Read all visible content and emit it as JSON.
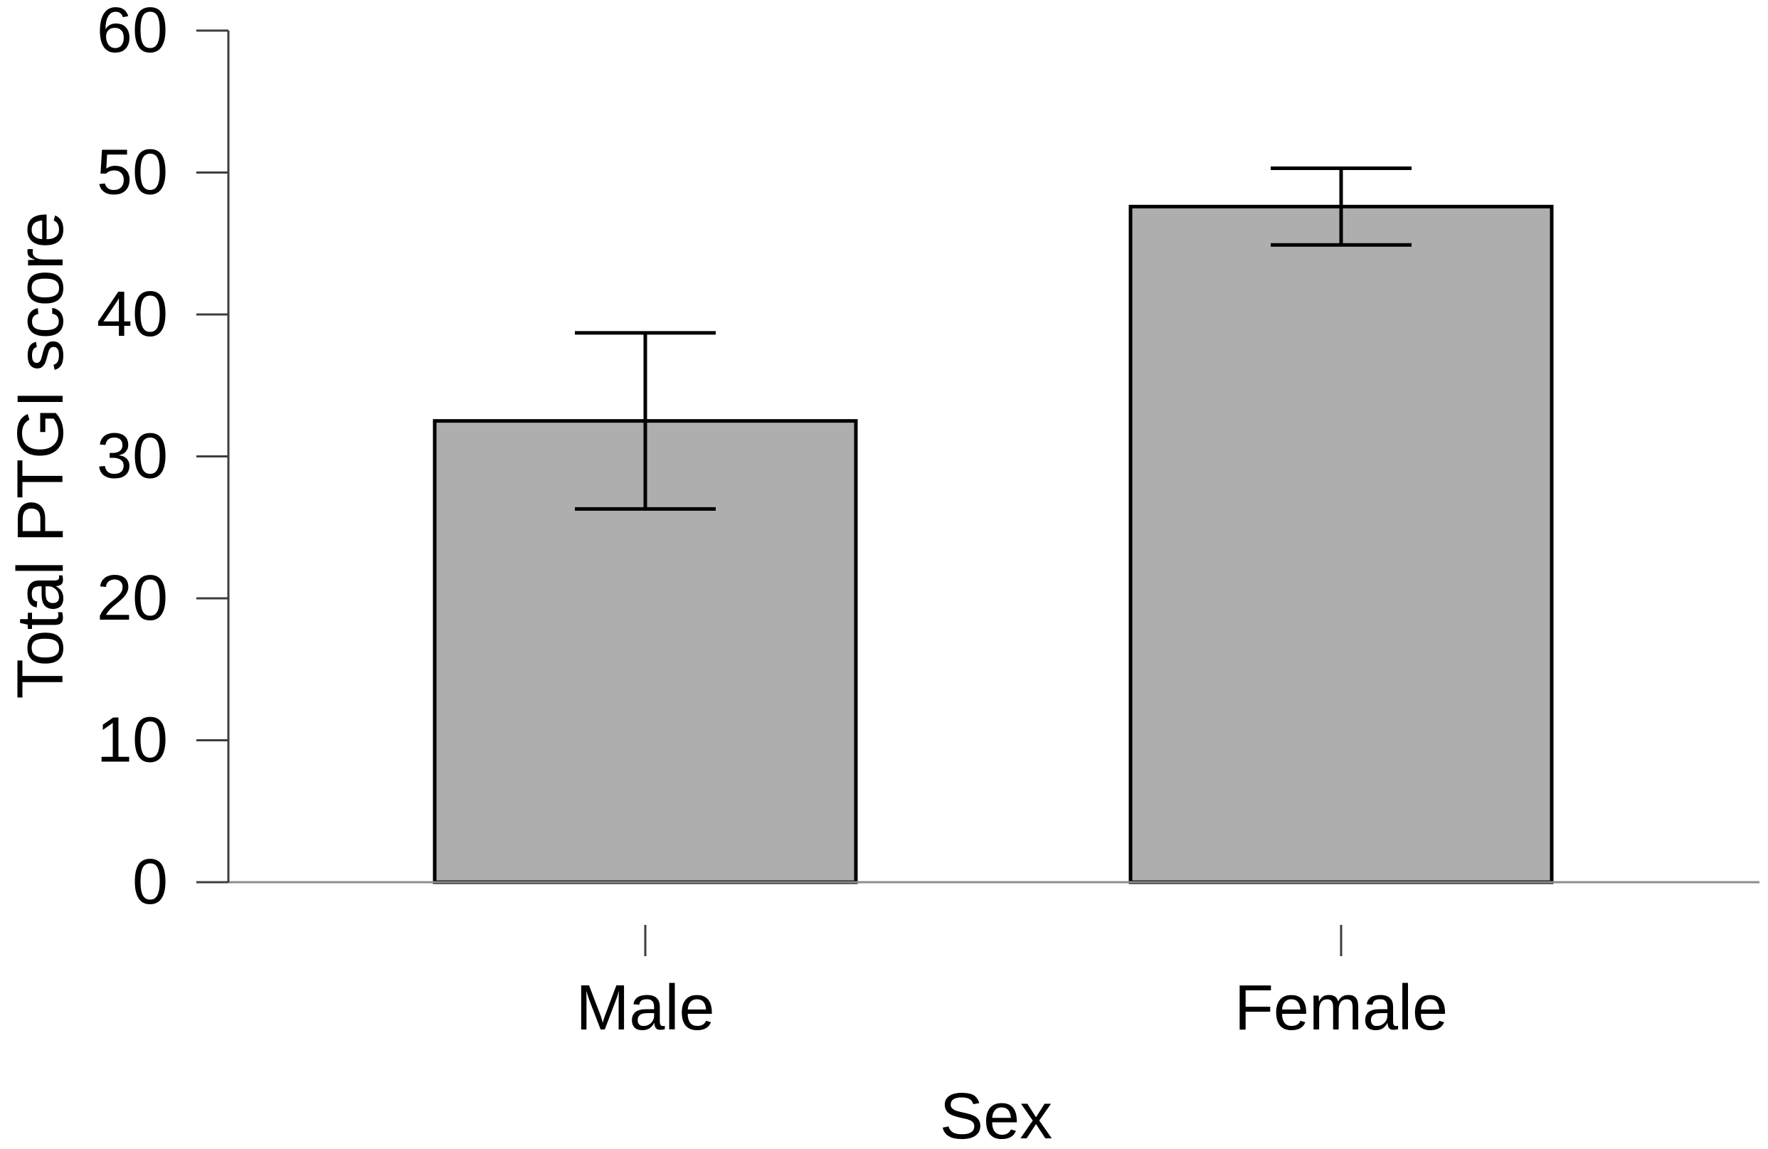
{
  "figure": {
    "background_color": "#ffffff"
  },
  "chart_data": {
    "type": "bar",
    "title": "",
    "xlabel": "Sex",
    "ylabel": "Total PTGI score",
    "categories": [
      "Male",
      "Female"
    ],
    "values": [
      32.5,
      47.6
    ],
    "error_low": [
      26.3,
      44.9
    ],
    "error_high": [
      38.7,
      50.3
    ],
    "ylim": [
      0,
      60
    ],
    "yticks": [
      0,
      10,
      20,
      30,
      40,
      50,
      60
    ],
    "grid": false,
    "legend": null,
    "bar_fill_color": "#aeaeae",
    "bar_border_color": "#000000",
    "error_bar_color": "#000000",
    "axis_color": "#3d3d3d",
    "baseline_color": "#8c8c8c",
    "text_color": "#000000"
  }
}
